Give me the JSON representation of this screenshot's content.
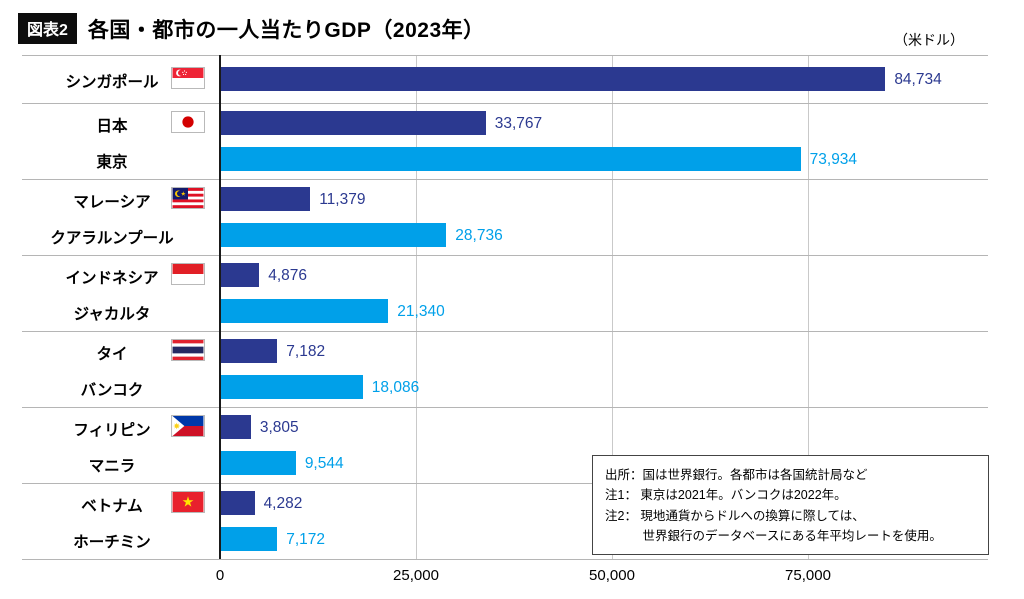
{
  "header": {
    "tag": "図表2",
    "title": "各国・都市の一人当たりGDP（2023年）",
    "unit": "（米ドル）"
  },
  "chart_data": {
    "type": "bar",
    "orientation": "horizontal",
    "title": "各国・都市の一人当たりGDP（2023年）",
    "unit": "米ドル",
    "xlim": [
      0,
      98000
    ],
    "xticks": [
      0,
      25000,
      50000,
      75000
    ],
    "xtick_labels": [
      "0",
      "25,000",
      "50,000",
      "75,000"
    ],
    "grid": "vertical-lines",
    "legend": null,
    "colors": {
      "country_bar": "#2b3990",
      "city_bar": "#00a0e9"
    },
    "groups": [
      {
        "country": "シンガポール",
        "flag": "singapore",
        "country_value": 84734,
        "country_value_label": "84,734"
      },
      {
        "country": "日本",
        "flag": "japan",
        "country_value": 33767,
        "country_value_label": "33,767",
        "city": "東京",
        "city_value": 73934,
        "city_value_label": "73,934"
      },
      {
        "country": "マレーシア",
        "flag": "malaysia",
        "country_value": 11379,
        "country_value_label": "11,379",
        "city": "クアラルンプール",
        "city_value": 28736,
        "city_value_label": "28,736"
      },
      {
        "country": "インドネシア",
        "flag": "indonesia",
        "country_value": 4876,
        "country_value_label": "4,876",
        "city": "ジャカルタ",
        "city_value": 21340,
        "city_value_label": "21,340"
      },
      {
        "country": "タイ",
        "flag": "thailand",
        "country_value": 7182,
        "country_value_label": "7,182",
        "city": "バンコク",
        "city_value": 18086,
        "city_value_label": "18,086"
      },
      {
        "country": "フィリピン",
        "flag": "philippines",
        "country_value": 3805,
        "country_value_label": "3,805",
        "city": "マニラ",
        "city_value": 9544,
        "city_value_label": "9,544"
      },
      {
        "country": "ベトナム",
        "flag": "vietnam",
        "country_value": 4282,
        "country_value_label": "4,282",
        "city": "ホーチミン",
        "city_value": 7172,
        "city_value_label": "7,172"
      }
    ]
  },
  "notes": {
    "lines": [
      "出所：国は世界銀行。各都市は各国統計局など",
      "注1： 東京は2021年。バンコクは2022年。",
      "注2： 現地通貨からドルへの換算に際しては、",
      "　　　世界銀行のデータベースにある年平均レートを使用。"
    ]
  }
}
